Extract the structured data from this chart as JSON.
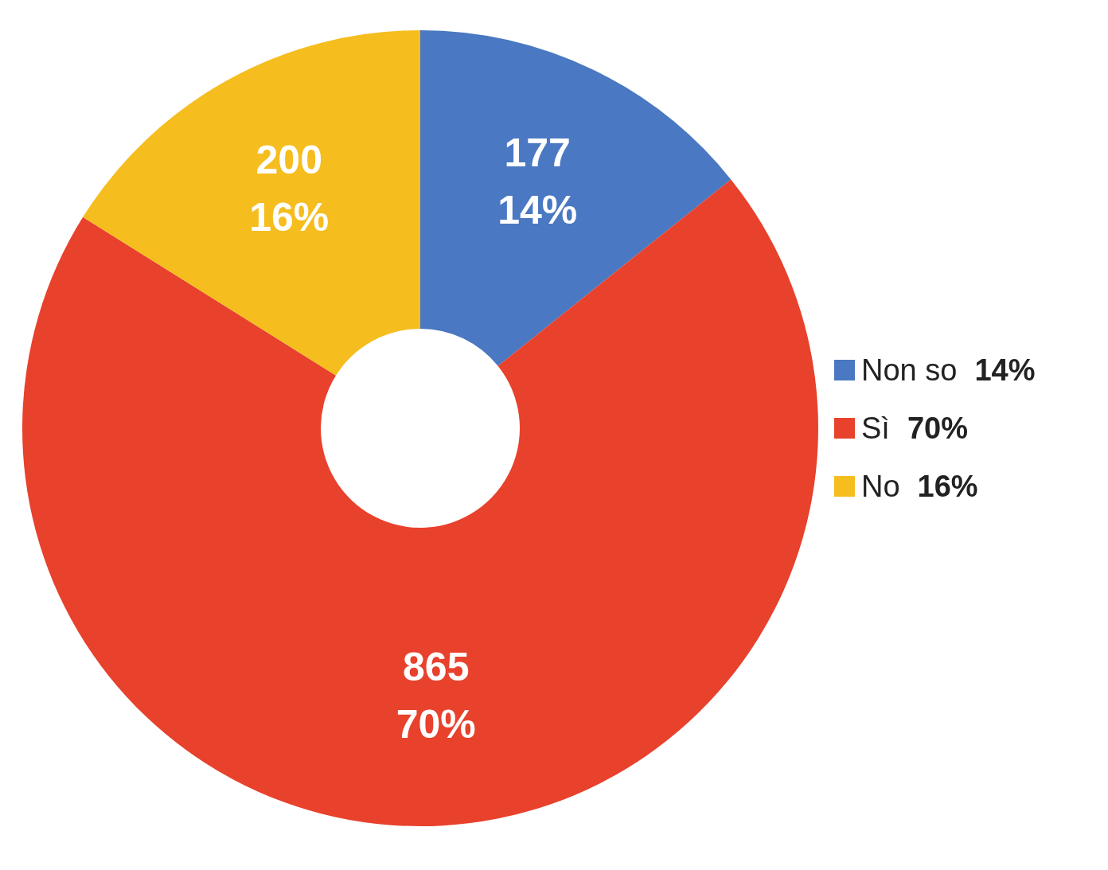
{
  "chart_data": {
    "type": "donut",
    "categories": [
      "Non so 14%",
      "Sì 70%",
      "No 16%"
    ],
    "values": [
      177,
      865,
      200
    ],
    "colors": [
      "#4a78c2",
      "#e8412c",
      "#f5bd1e"
    ],
    "value_labels": [
      "177\n14%",
      "865\n70%",
      "200\n16%"
    ],
    "legend": "right"
  }
}
